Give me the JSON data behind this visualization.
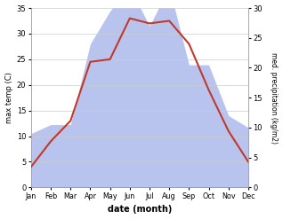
{
  "months": [
    "Jan",
    "Feb",
    "Mar",
    "Apr",
    "May",
    "Jun",
    "Jul",
    "Aug",
    "Sep",
    "Oct",
    "Nov",
    "Dec"
  ],
  "temperature": [
    4.0,
    9.0,
    13.0,
    24.5,
    25.0,
    33.0,
    32.0,
    32.5,
    28.0,
    19.0,
    11.0,
    5.0
  ],
  "precipitation": [
    9.0,
    10.5,
    10.5,
    24.0,
    29.5,
    33.5,
    27.0,
    33.5,
    20.5,
    20.5,
    12.0,
    10.0
  ],
  "temp_color": "#c0392b",
  "precip_color_fill": "#b8c4ee",
  "temp_ylim": [
    0,
    35
  ],
  "precip_ylim": [
    0,
    30
  ],
  "temp_yticks": [
    0,
    5,
    10,
    15,
    20,
    25,
    30,
    35
  ],
  "precip_yticks": [
    0,
    5,
    10,
    15,
    20,
    25,
    30
  ],
  "xlabel": "date (month)",
  "ylabel_left": "max temp (C)",
  "ylabel_right": "med. precipitation (kg/m2)",
  "bg_color": "#ffffff",
  "grid_color": "#cccccc"
}
